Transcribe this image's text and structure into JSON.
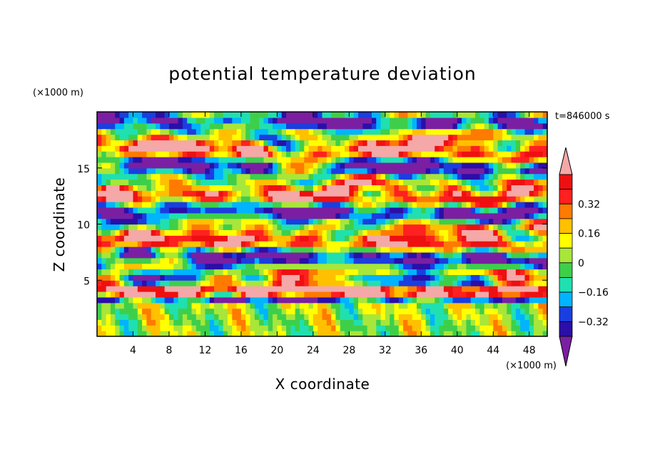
{
  "chart_data": {
    "type": "heatmap",
    "title": "potential temperature deviation",
    "xlabel": "X coordinate",
    "ylabel": "Z coordinate",
    "x_unit": "(×1000 m)",
    "y_unit": "(×1000 m)",
    "time_label": "t=846000 s",
    "xlim": [
      0,
      50
    ],
    "ylim": [
      0,
      20
    ],
    "x_ticks": [
      4,
      8,
      12,
      16,
      20,
      24,
      28,
      32,
      36,
      40,
      44,
      48
    ],
    "y_ticks": [
      5,
      10,
      15
    ],
    "colorbar": {
      "levels": [
        -0.48,
        -0.4,
        -0.32,
        -0.24,
        -0.16,
        -0.08,
        0,
        0.08,
        0.16,
        0.24,
        0.32,
        0.4,
        0.48
      ],
      "labeled": [
        0.32,
        0.16,
        0,
        -0.16,
        -0.32
      ],
      "labels": [
        "0.32",
        "0.16",
        "0",
        "−0.16",
        "−0.32"
      ],
      "colors": [
        "#7b1fa2",
        "#2a0fa8",
        "#1a3ee0",
        "#00b4ff",
        "#20e0b0",
        "#3ecf4a",
        "#a8e63a",
        "#ffff00",
        "#ffc000",
        "#ff7a00",
        "#ff2020",
        "#ee1010",
        "#f4a8a8"
      ]
    },
    "field": {
      "nx": 100,
      "nz": 40,
      "range": [
        -0.5,
        0.5
      ]
    }
  }
}
